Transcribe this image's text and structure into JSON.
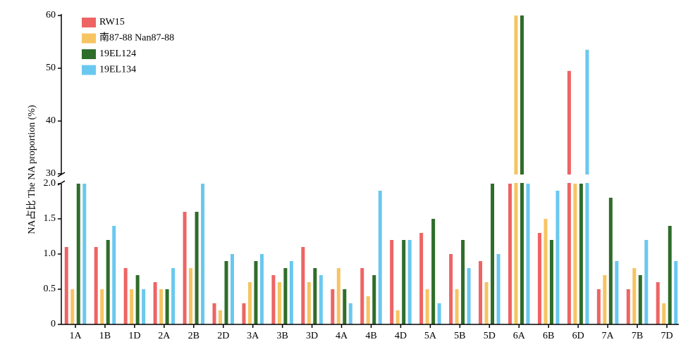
{
  "chart_data": {
    "type": "bar",
    "y_label": "NA占比 The NA proportion (%)",
    "categories": [
      "1A",
      "1B",
      "1D",
      "2A",
      "2B",
      "2D",
      "3A",
      "3B",
      "3D",
      "4A",
      "4B",
      "4D",
      "5A",
      "5B",
      "5D",
      "6A",
      "6B",
      "6D",
      "7A",
      "7B",
      "7D"
    ],
    "series": [
      {
        "name": "RW15",
        "color": "#ee6464",
        "values": [
          1.1,
          1.1,
          0.8,
          0.6,
          1.6,
          0.3,
          0.3,
          0.7,
          1.1,
          0.5,
          0.8,
          1.2,
          1.3,
          1.0,
          0.9,
          2.0,
          1.3,
          49.5,
          0.5,
          0.5,
          0.6
        ]
      },
      {
        "name": "南87-88 Nan87-88",
        "color": "#f6c462",
        "values": [
          0.5,
          0.5,
          0.5,
          0.5,
          0.8,
          0.2,
          0.6,
          0.6,
          0.6,
          0.8,
          0.4,
          0.2,
          0.5,
          0.5,
          0.6,
          60,
          1.5,
          2.0,
          0.7,
          0.8,
          0.3
        ]
      },
      {
        "name": "19EL124",
        "color": "#2f6d2a",
        "values": [
          2.0,
          1.2,
          0.7,
          0.5,
          1.6,
          0.9,
          0.9,
          0.8,
          0.8,
          0.5,
          0.7,
          1.2,
          1.5,
          1.2,
          2.0,
          60,
          1.2,
          2.0,
          1.8,
          0.7,
          1.4
        ]
      },
      {
        "name": "19EL134",
        "color": "#6ac8ef",
        "values": [
          2.0,
          1.4,
          0.5,
          0.8,
          2.0,
          1.0,
          1.0,
          0.9,
          0.7,
          0.3,
          1.9,
          1.2,
          0.3,
          0.8,
          1.0,
          2.0,
          1.9,
          53.5,
          0.9,
          1.2,
          0.9
        ]
      }
    ],
    "ylim": [
      0,
      60
    ],
    "ybreak": [
      2,
      30
    ],
    "yticks": [
      0,
      0.5,
      {
        "value": 1,
        "label": "1.0"
      },
      1.5,
      {
        "value": 2,
        "label": "2.0"
      },
      30,
      40,
      50,
      60
    ],
    "legend": "upper left"
  }
}
